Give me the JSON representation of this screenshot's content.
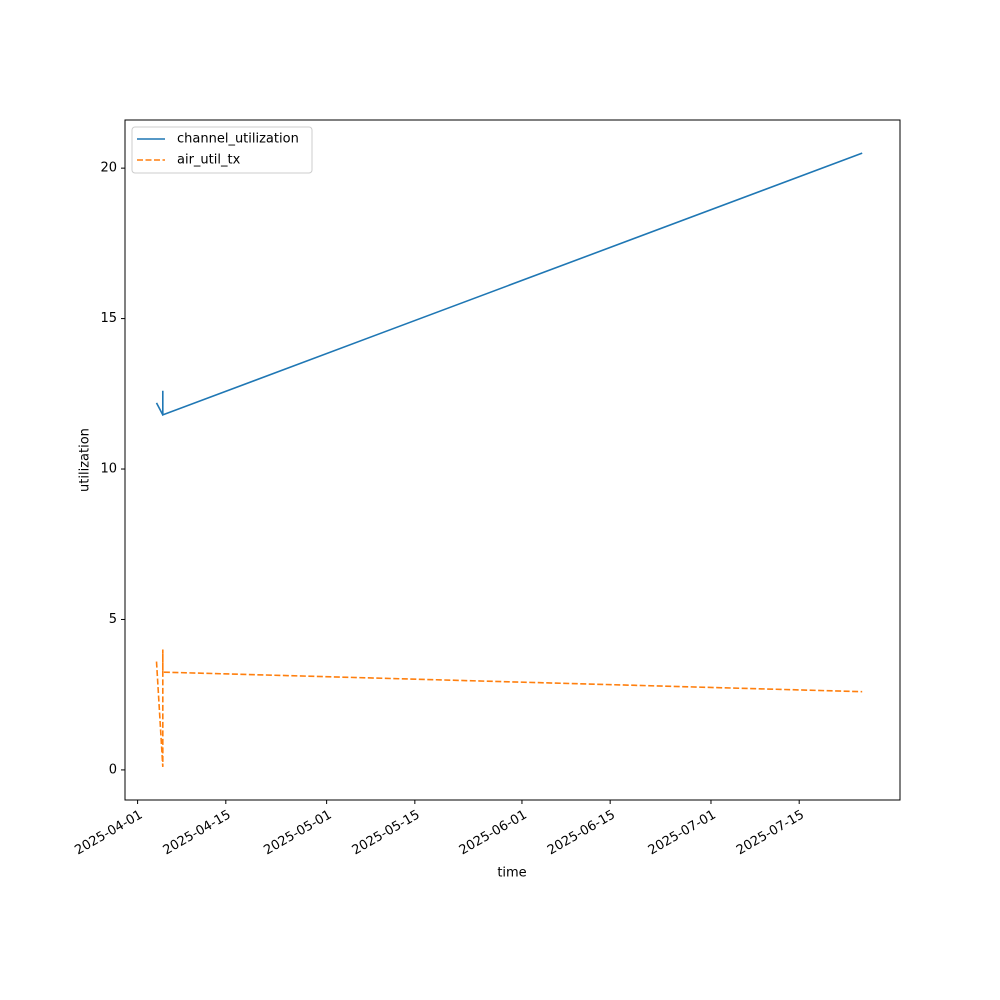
{
  "chart_data": {
    "type": "line",
    "x": [
      "2025-04-04",
      "2025-04-05",
      "2025-04-05",
      "2025-04-05",
      "2025-07-25"
    ],
    "series": [
      {
        "name": "channel_utilization",
        "color": "#1f77b4",
        "dash": "solid",
        "values": [
          12.2,
          11.8,
          12.6,
          11.8,
          20.5
        ]
      },
      {
        "name": "air_util_tx",
        "color": "#ff7f0e",
        "dash": "dashed",
        "values": [
          3.6,
          0.1,
          4.0,
          3.25,
          2.6
        ]
      }
    ],
    "xlabel": "time",
    "ylabel": "utilization",
    "xlim": [
      "2025-03-30",
      "2025-07-31"
    ],
    "xticks": [
      "2025-04-01",
      "2025-04-15",
      "2025-05-01",
      "2025-05-15",
      "2025-06-01",
      "2025-06-15",
      "2025-07-01",
      "2025-07-15"
    ],
    "ylim": [
      -1.0,
      21.6
    ],
    "yticks": [
      0,
      5,
      10,
      15,
      20
    ],
    "legend": "upper left",
    "grid": false
  }
}
